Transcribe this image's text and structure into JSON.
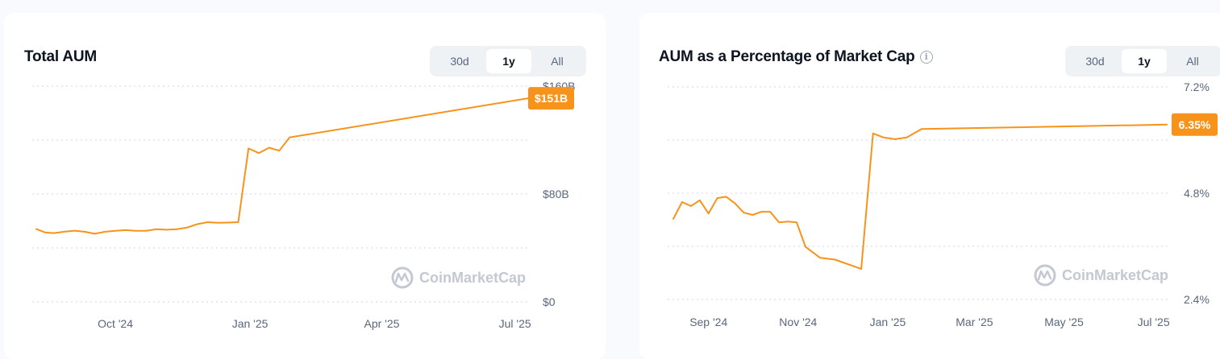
{
  "cards": [
    {
      "title": "Total AUM",
      "tabs": [
        "30d",
        "1y",
        "All"
      ],
      "active_tab": "1y"
    },
    {
      "title": "AUM as a Percentage of Market Cap",
      "tabs": [
        "30d",
        "1y",
        "All"
      ],
      "active_tab": "1y"
    }
  ],
  "watermark": "CoinMarketCap",
  "colors": {
    "line": "#f7931a",
    "badge": "#f7931a",
    "grid": "#cfd6e4"
  },
  "chart_data": [
    {
      "type": "line",
      "title": "Total AUM",
      "y_unit": "$B",
      "ylim": [
        0,
        160
      ],
      "y_ticks": [
        {
          "label": "$0",
          "value": 0
        },
        {
          "label": "$80B",
          "value": 80
        },
        {
          "label": "$160B",
          "value": 160
        }
      ],
      "x_ticks": [
        {
          "label": "Oct '24",
          "date": "2024-10-01"
        },
        {
          "label": "Jan '25",
          "date": "2025-01-01"
        },
        {
          "label": "Apr '25",
          "date": "2025-04-01"
        },
        {
          "label": "Jul '25",
          "date": "2025-07-01"
        }
      ],
      "last_value_label": "$151B",
      "grid": true,
      "series": [
        {
          "points": [
            [
              "2024-08-08",
              54
            ],
            [
              "2024-08-14",
              51.5
            ],
            [
              "2024-08-20",
              51
            ],
            [
              "2024-08-27",
              52
            ],
            [
              "2024-09-03",
              52.8
            ],
            [
              "2024-09-10",
              52
            ],
            [
              "2024-09-17",
              50.5
            ],
            [
              "2024-09-24",
              52
            ],
            [
              "2024-10-01",
              52.7
            ],
            [
              "2024-10-08",
              53.2
            ],
            [
              "2024-10-15",
              52.7
            ],
            [
              "2024-10-22",
              52.7
            ],
            [
              "2024-10-29",
              53.9
            ],
            [
              "2024-11-05",
              53.5
            ],
            [
              "2024-11-12",
              53.9
            ],
            [
              "2024-11-19",
              55.1
            ],
            [
              "2024-11-26",
              57.6
            ],
            [
              "2024-12-03",
              59.1
            ],
            [
              "2024-12-10",
              58.6
            ],
            [
              "2024-12-17",
              58.8
            ],
            [
              "2024-12-24",
              59.1
            ],
            [
              "2024-12-31",
              113.8
            ],
            [
              "2025-01-07",
              110.3
            ],
            [
              "2025-01-14",
              114.3
            ],
            [
              "2025-01-21",
              112.1
            ],
            [
              "2025-01-28",
              122
            ],
            [
              "2025-07-10",
              151
            ]
          ]
        }
      ]
    },
    {
      "type": "line",
      "title": "AUM as a Percentage of Market Cap",
      "y_unit": "%",
      "ylim": [
        2.4,
        7.2
      ],
      "y_ticks": [
        {
          "label": "2.4%",
          "value": 2.4
        },
        {
          "label": "4.8%",
          "value": 4.8
        },
        {
          "label": "7.2%",
          "value": 7.2
        }
      ],
      "x_ticks": [
        {
          "label": "Sep '24",
          "date": "2024-09-01"
        },
        {
          "label": "Nov '24",
          "date": "2024-11-01"
        },
        {
          "label": "Jan '25",
          "date": "2025-01-01"
        },
        {
          "label": "Mar '25",
          "date": "2025-03-01"
        },
        {
          "label": "May '25",
          "date": "2025-05-01"
        },
        {
          "label": "Jul '25",
          "date": "2025-07-01"
        }
      ],
      "last_value_label": "6.35%",
      "grid": true,
      "series": [
        {
          "points": [
            [
              "2024-08-08",
              4.22
            ],
            [
              "2024-08-14",
              4.6
            ],
            [
              "2024-08-20",
              4.51
            ],
            [
              "2024-08-26",
              4.64
            ],
            [
              "2024-09-01",
              4.34
            ],
            [
              "2024-09-07",
              4.69
            ],
            [
              "2024-09-13",
              4.72
            ],
            [
              "2024-09-19",
              4.57
            ],
            [
              "2024-09-25",
              4.36
            ],
            [
              "2024-10-01",
              4.31
            ],
            [
              "2024-10-07",
              4.38
            ],
            [
              "2024-10-13",
              4.38
            ],
            [
              "2024-10-19",
              4.14
            ],
            [
              "2024-10-25",
              4.16
            ],
            [
              "2024-10-31",
              4.14
            ],
            [
              "2024-11-06",
              3.59
            ],
            [
              "2024-11-16",
              3.34
            ],
            [
              "2024-11-26",
              3.3
            ],
            [
              "2024-12-14",
              3.09
            ],
            [
              "2024-12-22",
              6.15
            ],
            [
              "2024-12-29",
              6.06
            ],
            [
              "2025-01-06",
              6.02
            ],
            [
              "2025-01-14",
              6.06
            ],
            [
              "2025-01-24",
              6.25
            ],
            [
              "2025-07-10",
              6.35
            ]
          ]
        }
      ]
    }
  ]
}
